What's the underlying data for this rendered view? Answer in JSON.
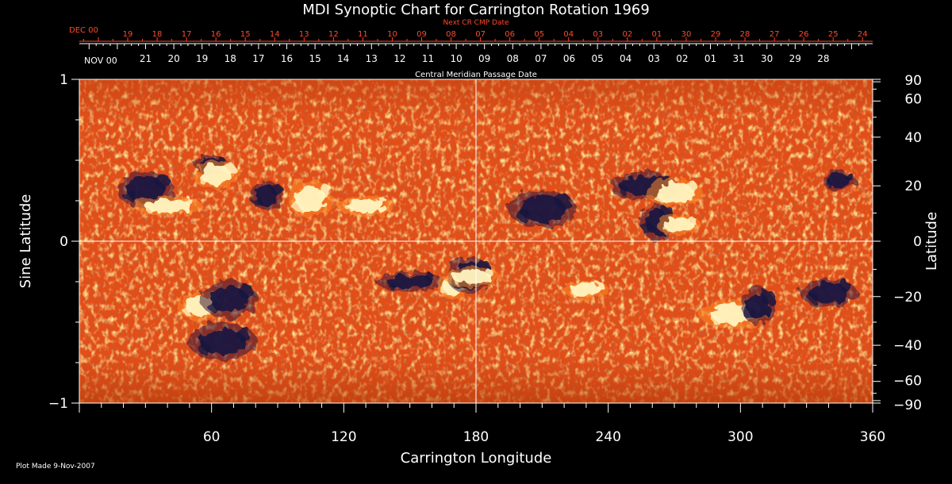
{
  "chart_data": {
    "type": "heatmap",
    "title": "MDI Synoptic Chart for Carrington Rotation 1969",
    "xlabel": "Carrington Longitude",
    "ylabel_left": "Sine Latitude",
    "ylabel_right": "Latitude",
    "xlim": [
      0,
      360
    ],
    "ylim_sine": [
      -1,
      1
    ],
    "x_ticks": [
      60,
      120,
      180,
      240,
      300,
      360
    ],
    "y_ticks_left": [
      {
        "value": 1,
        "label": "1"
      },
      {
        "value": 0,
        "label": "0"
      },
      {
        "value": -1,
        "label": "−1"
      }
    ],
    "y_ticks_right_deg": [
      90,
      60,
      40,
      20,
      0,
      -20,
      -40,
      -60,
      -90
    ],
    "y_ticks_right_labels": [
      "90",
      "60",
      "40",
      "20",
      "0",
      "−20",
      "−40",
      "−60",
      "−90"
    ],
    "top_axis_next": {
      "title": "Next CR CMP Date",
      "month_label": "DEC 00",
      "days": [
        "19",
        "18",
        "17",
        "16",
        "15",
        "14",
        "13",
        "12",
        "11",
        "10",
        "09",
        "08",
        "07",
        "06",
        "05",
        "04",
        "03",
        "02",
        "01",
        "30",
        "29",
        "28",
        "27",
        "26",
        "25",
        "24"
      ]
    },
    "top_axis_cmp": {
      "title": "Central Meridian Passage Date",
      "month_label": "NOV 00",
      "days": [
        "21",
        "20",
        "19",
        "18",
        "17",
        "16",
        "15",
        "14",
        "13",
        "12",
        "11",
        "10",
        "09",
        "08",
        "07",
        "06",
        "05",
        "04",
        "03",
        "02",
        "01",
        "31",
        "30",
        "29",
        "28"
      ]
    },
    "colormap": {
      "background": "#e8501a",
      "positive": "#fff4c0",
      "negative": "#1a1640",
      "mid": "#ff8a2a"
    },
    "active_regions": [
      {
        "lon": 60,
        "sinlat": 0.47,
        "polarity": "neg"
      },
      {
        "lon": 62,
        "sinlat": 0.41,
        "polarity": "pos"
      },
      {
        "lon": 30,
        "sinlat": 0.32,
        "polarity": "neg"
      },
      {
        "lon": 40,
        "sinlat": 0.22,
        "polarity": "pos"
      },
      {
        "lon": 85,
        "sinlat": 0.28,
        "polarity": "neg"
      },
      {
        "lon": 105,
        "sinlat": 0.26,
        "polarity": "pos"
      },
      {
        "lon": 130,
        "sinlat": 0.22,
        "polarity": "pos"
      },
      {
        "lon": 256,
        "sinlat": 0.34,
        "polarity": "neg"
      },
      {
        "lon": 262,
        "sinlat": 0.12,
        "polarity": "neg"
      },
      {
        "lon": 272,
        "sinlat": 0.1,
        "polarity": "pos"
      },
      {
        "lon": 270,
        "sinlat": 0.3,
        "polarity": "pos"
      },
      {
        "lon": 210,
        "sinlat": 0.2,
        "polarity": "neg"
      },
      {
        "lon": 345,
        "sinlat": 0.37,
        "polarity": "neg"
      },
      {
        "lon": 55,
        "sinlat": -0.4,
        "polarity": "pos"
      },
      {
        "lon": 68,
        "sinlat": -0.36,
        "polarity": "neg"
      },
      {
        "lon": 150,
        "sinlat": -0.25,
        "polarity": "neg"
      },
      {
        "lon": 170,
        "sinlat": -0.27,
        "polarity": "pos"
      },
      {
        "lon": 177,
        "sinlat": -0.21,
        "polarity": "neg"
      },
      {
        "lon": 178,
        "sinlat": -0.22,
        "polarity": "pos"
      },
      {
        "lon": 297,
        "sinlat": -0.45,
        "polarity": "pos"
      },
      {
        "lon": 308,
        "sinlat": -0.4,
        "polarity": "neg"
      },
      {
        "lon": 230,
        "sinlat": -0.3,
        "polarity": "pos"
      },
      {
        "lon": 340,
        "sinlat": -0.32,
        "polarity": "neg"
      },
      {
        "lon": 65,
        "sinlat": -0.62,
        "polarity": "neg"
      }
    ]
  },
  "footer": {
    "plot_made": "Plot Made  9-Nov-2007"
  }
}
